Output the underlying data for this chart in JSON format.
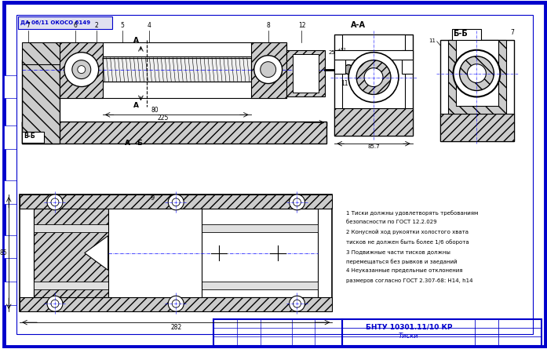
{
  "bg_color": "#ffffff",
  "border_color": "#0000cc",
  "draw_color": "#000000",
  "blue_color": "#0000cc",
  "light_gray": "#cccccc",
  "mid_gray": "#aaaaaa",
  "dark_gray": "#888888",
  "hatch_gray": "#bbbbbb",
  "title_stamp_text": "БНТУ 10301.11/10 КР",
  "title_stamp_sub": "Тиски",
  "header_label": "ДА 06/11 ОКОСО 6149",
  "notes": [
    "1 Тиски должны удовлетворять требованиям",
    "безопасности по ГОСТ 12.2.029",
    "2 Конусной ход рукоятки холостого хвата",
    "тисков не должен быть более 1/6 оборота",
    "3 Подвижные части тисков должны",
    "перемещаться без рывков и заеданий",
    "4 Неуказанные предельные отклонения",
    "размеров согласно ГОСТ 2.307-68: H14, h14"
  ],
  "figsize": [
    6.97,
    4.45
  ],
  "dpi": 100
}
